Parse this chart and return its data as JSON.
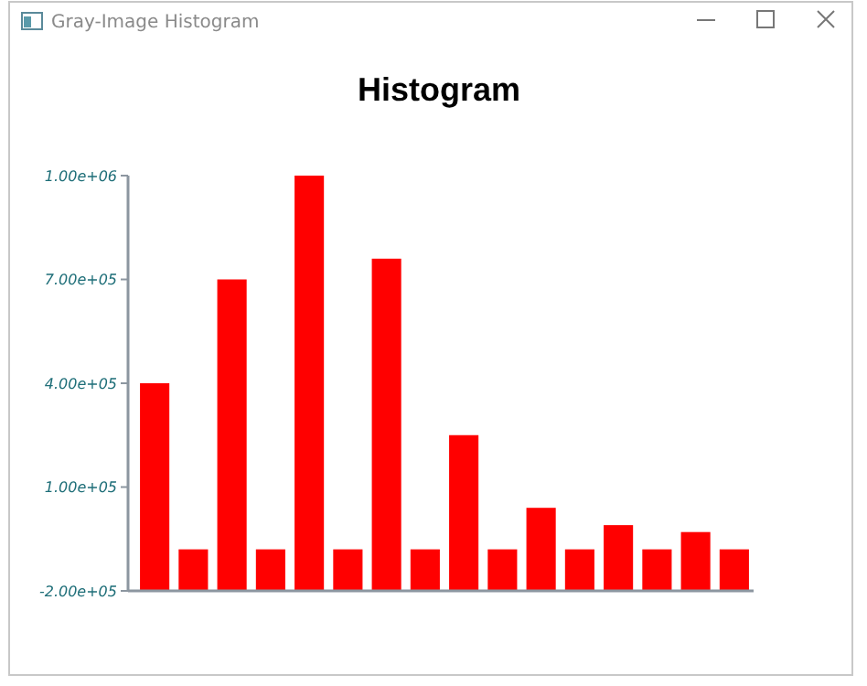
{
  "chart_data": {
    "type": "bar",
    "title": "Histogram",
    "annotations": [
      "Gray-Image Histogram"
    ],
    "categories": [
      null,
      null,
      null,
      null,
      null,
      null,
      null,
      null,
      null,
      null,
      null,
      null,
      null,
      null,
      null,
      null
    ],
    "values": [
      600000,
      120000,
      900000,
      120000,
      1200000,
      120000,
      960000,
      120000,
      450000,
      120000,
      240000,
      120000,
      190000,
      120000,
      170000,
      120000
    ],
    "base": [
      -200000,
      -200000,
      -200000,
      -200000,
      -200000,
      -200000,
      -200000,
      -200000,
      -200000,
      -200000,
      -200000,
      -200000,
      -200000,
      -200000,
      -200000,
      -200000
    ],
    "color": "#ff0000",
    "ylim": [
      -200000,
      1000000
    ],
    "yticks": [
      {
        "value": -200000,
        "label": "-2.00e+05"
      },
      {
        "value": 100000,
        "label": "1.00e+05"
      },
      {
        "value": 400000,
        "label": "4.00e+05"
      },
      {
        "value": 700000,
        "label": "7.00e+05"
      },
      {
        "value": 1000000,
        "label": "1.00e+06"
      }
    ],
    "grid": false
  }
}
